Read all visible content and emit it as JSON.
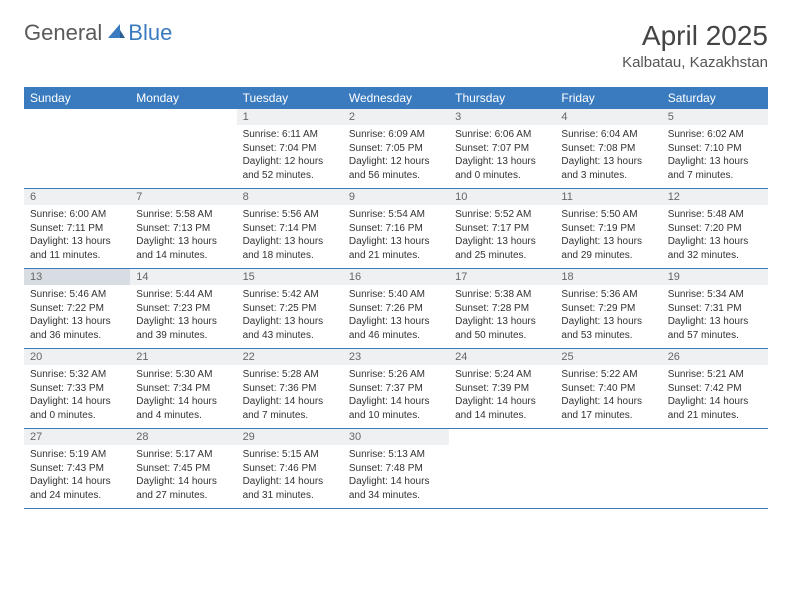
{
  "logo": {
    "part1": "General",
    "part2": "Blue"
  },
  "title": "April 2025",
  "location": "Kalbatau, Kazakhstan",
  "weekdays": [
    "Sunday",
    "Monday",
    "Tuesday",
    "Wednesday",
    "Thursday",
    "Friday",
    "Saturday"
  ],
  "colors": {
    "header_bg": "#3a7bbf",
    "header_text": "#ffffff",
    "daynum_bg": "#eef0f2",
    "daynum_hl_bg": "#d7dde3",
    "row_border": "#3a7bbf",
    "logo_gray": "#5a5a5a",
    "logo_blue": "#3a7bbf"
  },
  "weeks": [
    [
      {
        "empty": true
      },
      {
        "empty": true
      },
      {
        "num": "1",
        "sunrise": "Sunrise: 6:11 AM",
        "sunset": "Sunset: 7:04 PM",
        "daylight": "Daylight: 12 hours and 52 minutes."
      },
      {
        "num": "2",
        "sunrise": "Sunrise: 6:09 AM",
        "sunset": "Sunset: 7:05 PM",
        "daylight": "Daylight: 12 hours and 56 minutes."
      },
      {
        "num": "3",
        "sunrise": "Sunrise: 6:06 AM",
        "sunset": "Sunset: 7:07 PM",
        "daylight": "Daylight: 13 hours and 0 minutes."
      },
      {
        "num": "4",
        "sunrise": "Sunrise: 6:04 AM",
        "sunset": "Sunset: 7:08 PM",
        "daylight": "Daylight: 13 hours and 3 minutes."
      },
      {
        "num": "5",
        "sunrise": "Sunrise: 6:02 AM",
        "sunset": "Sunset: 7:10 PM",
        "daylight": "Daylight: 13 hours and 7 minutes."
      }
    ],
    [
      {
        "num": "6",
        "sunrise": "Sunrise: 6:00 AM",
        "sunset": "Sunset: 7:11 PM",
        "daylight": "Daylight: 13 hours and 11 minutes."
      },
      {
        "num": "7",
        "sunrise": "Sunrise: 5:58 AM",
        "sunset": "Sunset: 7:13 PM",
        "daylight": "Daylight: 13 hours and 14 minutes."
      },
      {
        "num": "8",
        "sunrise": "Sunrise: 5:56 AM",
        "sunset": "Sunset: 7:14 PM",
        "daylight": "Daylight: 13 hours and 18 minutes."
      },
      {
        "num": "9",
        "sunrise": "Sunrise: 5:54 AM",
        "sunset": "Sunset: 7:16 PM",
        "daylight": "Daylight: 13 hours and 21 minutes."
      },
      {
        "num": "10",
        "sunrise": "Sunrise: 5:52 AM",
        "sunset": "Sunset: 7:17 PM",
        "daylight": "Daylight: 13 hours and 25 minutes."
      },
      {
        "num": "11",
        "sunrise": "Sunrise: 5:50 AM",
        "sunset": "Sunset: 7:19 PM",
        "daylight": "Daylight: 13 hours and 29 minutes."
      },
      {
        "num": "12",
        "sunrise": "Sunrise: 5:48 AM",
        "sunset": "Sunset: 7:20 PM",
        "daylight": "Daylight: 13 hours and 32 minutes."
      }
    ],
    [
      {
        "num": "13",
        "hl": true,
        "sunrise": "Sunrise: 5:46 AM",
        "sunset": "Sunset: 7:22 PM",
        "daylight": "Daylight: 13 hours and 36 minutes."
      },
      {
        "num": "14",
        "sunrise": "Sunrise: 5:44 AM",
        "sunset": "Sunset: 7:23 PM",
        "daylight": "Daylight: 13 hours and 39 minutes."
      },
      {
        "num": "15",
        "sunrise": "Sunrise: 5:42 AM",
        "sunset": "Sunset: 7:25 PM",
        "daylight": "Daylight: 13 hours and 43 minutes."
      },
      {
        "num": "16",
        "sunrise": "Sunrise: 5:40 AM",
        "sunset": "Sunset: 7:26 PM",
        "daylight": "Daylight: 13 hours and 46 minutes."
      },
      {
        "num": "17",
        "sunrise": "Sunrise: 5:38 AM",
        "sunset": "Sunset: 7:28 PM",
        "daylight": "Daylight: 13 hours and 50 minutes."
      },
      {
        "num": "18",
        "sunrise": "Sunrise: 5:36 AM",
        "sunset": "Sunset: 7:29 PM",
        "daylight": "Daylight: 13 hours and 53 minutes."
      },
      {
        "num": "19",
        "sunrise": "Sunrise: 5:34 AM",
        "sunset": "Sunset: 7:31 PM",
        "daylight": "Daylight: 13 hours and 57 minutes."
      }
    ],
    [
      {
        "num": "20",
        "sunrise": "Sunrise: 5:32 AM",
        "sunset": "Sunset: 7:33 PM",
        "daylight": "Daylight: 14 hours and 0 minutes."
      },
      {
        "num": "21",
        "sunrise": "Sunrise: 5:30 AM",
        "sunset": "Sunset: 7:34 PM",
        "daylight": "Daylight: 14 hours and 4 minutes."
      },
      {
        "num": "22",
        "sunrise": "Sunrise: 5:28 AM",
        "sunset": "Sunset: 7:36 PM",
        "daylight": "Daylight: 14 hours and 7 minutes."
      },
      {
        "num": "23",
        "sunrise": "Sunrise: 5:26 AM",
        "sunset": "Sunset: 7:37 PM",
        "daylight": "Daylight: 14 hours and 10 minutes."
      },
      {
        "num": "24",
        "sunrise": "Sunrise: 5:24 AM",
        "sunset": "Sunset: 7:39 PM",
        "daylight": "Daylight: 14 hours and 14 minutes."
      },
      {
        "num": "25",
        "sunrise": "Sunrise: 5:22 AM",
        "sunset": "Sunset: 7:40 PM",
        "daylight": "Daylight: 14 hours and 17 minutes."
      },
      {
        "num": "26",
        "sunrise": "Sunrise: 5:21 AM",
        "sunset": "Sunset: 7:42 PM",
        "daylight": "Daylight: 14 hours and 21 minutes."
      }
    ],
    [
      {
        "num": "27",
        "sunrise": "Sunrise: 5:19 AM",
        "sunset": "Sunset: 7:43 PM",
        "daylight": "Daylight: 14 hours and 24 minutes."
      },
      {
        "num": "28",
        "sunrise": "Sunrise: 5:17 AM",
        "sunset": "Sunset: 7:45 PM",
        "daylight": "Daylight: 14 hours and 27 minutes."
      },
      {
        "num": "29",
        "sunrise": "Sunrise: 5:15 AM",
        "sunset": "Sunset: 7:46 PM",
        "daylight": "Daylight: 14 hours and 31 minutes."
      },
      {
        "num": "30",
        "sunrise": "Sunrise: 5:13 AM",
        "sunset": "Sunset: 7:48 PM",
        "daylight": "Daylight: 14 hours and 34 minutes."
      },
      {
        "empty": true
      },
      {
        "empty": true
      },
      {
        "empty": true
      }
    ]
  ]
}
